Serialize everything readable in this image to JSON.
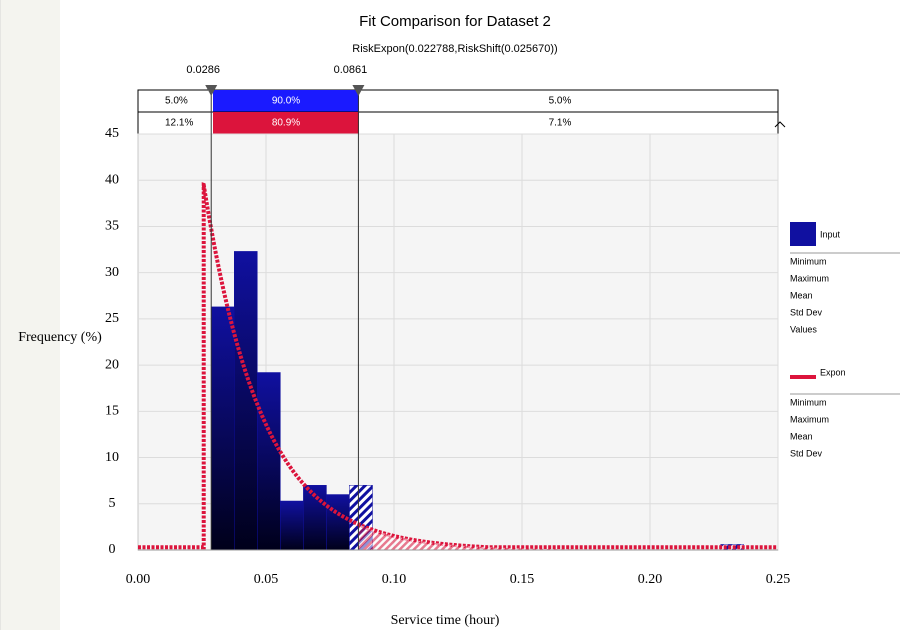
{
  "chart_data": {
    "type": "bar",
    "title": "Fit Comparison for Dataset 2",
    "subtitle": "RiskExpon(0.022788,RiskShift(0.025670))",
    "xlabel": "Service time (hour)",
    "ylabel": "Frequency (%)",
    "xlim": [
      0,
      0.25
    ],
    "ylim": [
      0,
      45
    ],
    "xticks": [
      "0.00",
      "0.05",
      "0.10",
      "0.15",
      "0.20",
      "0.25"
    ],
    "yticks": [
      "0",
      "5",
      "10",
      "15",
      "20",
      "25",
      "30",
      "35",
      "40",
      "45"
    ],
    "grid": true,
    "legend_position": "right",
    "series": [
      {
        "name": "Input",
        "color": "#1010a0",
        "bins": [
          {
            "x0": 0.0286,
            "x1": 0.0376,
            "y": 26.3
          },
          {
            "x0": 0.0376,
            "x1": 0.0466,
            "y": 32.3
          },
          {
            "x0": 0.0466,
            "x1": 0.0556,
            "y": 19.2
          },
          {
            "x0": 0.0556,
            "x1": 0.0646,
            "y": 5.3
          },
          {
            "x0": 0.0646,
            "x1": 0.0736,
            "y": 7.0
          },
          {
            "x0": 0.0736,
            "x1": 0.0826,
            "y": 6.0
          },
          {
            "x0": 0.0826,
            "x1": 0.0916,
            "y": 7.0
          },
          {
            "x0": 0.2276,
            "x1": 0.2366,
            "y": 0.6
          }
        ]
      },
      {
        "name": "Expon",
        "color": "#dc143c",
        "rate": 43.88,
        "shift": 0.02567,
        "bin_width": 0.009
      }
    ],
    "markers": [
      {
        "label": "0.0286",
        "x": 0.0286
      },
      {
        "label": "0.0861",
        "x": 0.0861
      }
    ],
    "delimiter_rows": [
      {
        "left": "5.0%",
        "middle": "90.0%",
        "right": "5.0%",
        "color": "#1a1aff"
      },
      {
        "left": "12.1%",
        "middle": "80.9%",
        "right": "7.1%",
        "color": "#dc143c"
      }
    ],
    "legend": [
      {
        "name": "Input",
        "stats": [
          "Minimum",
          "Maximum",
          "Mean",
          "Std Dev",
          "Values"
        ]
      },
      {
        "name": "Expon",
        "stats": [
          "Minimum",
          "Maximum",
          "Mean",
          "Std Dev"
        ]
      }
    ]
  }
}
